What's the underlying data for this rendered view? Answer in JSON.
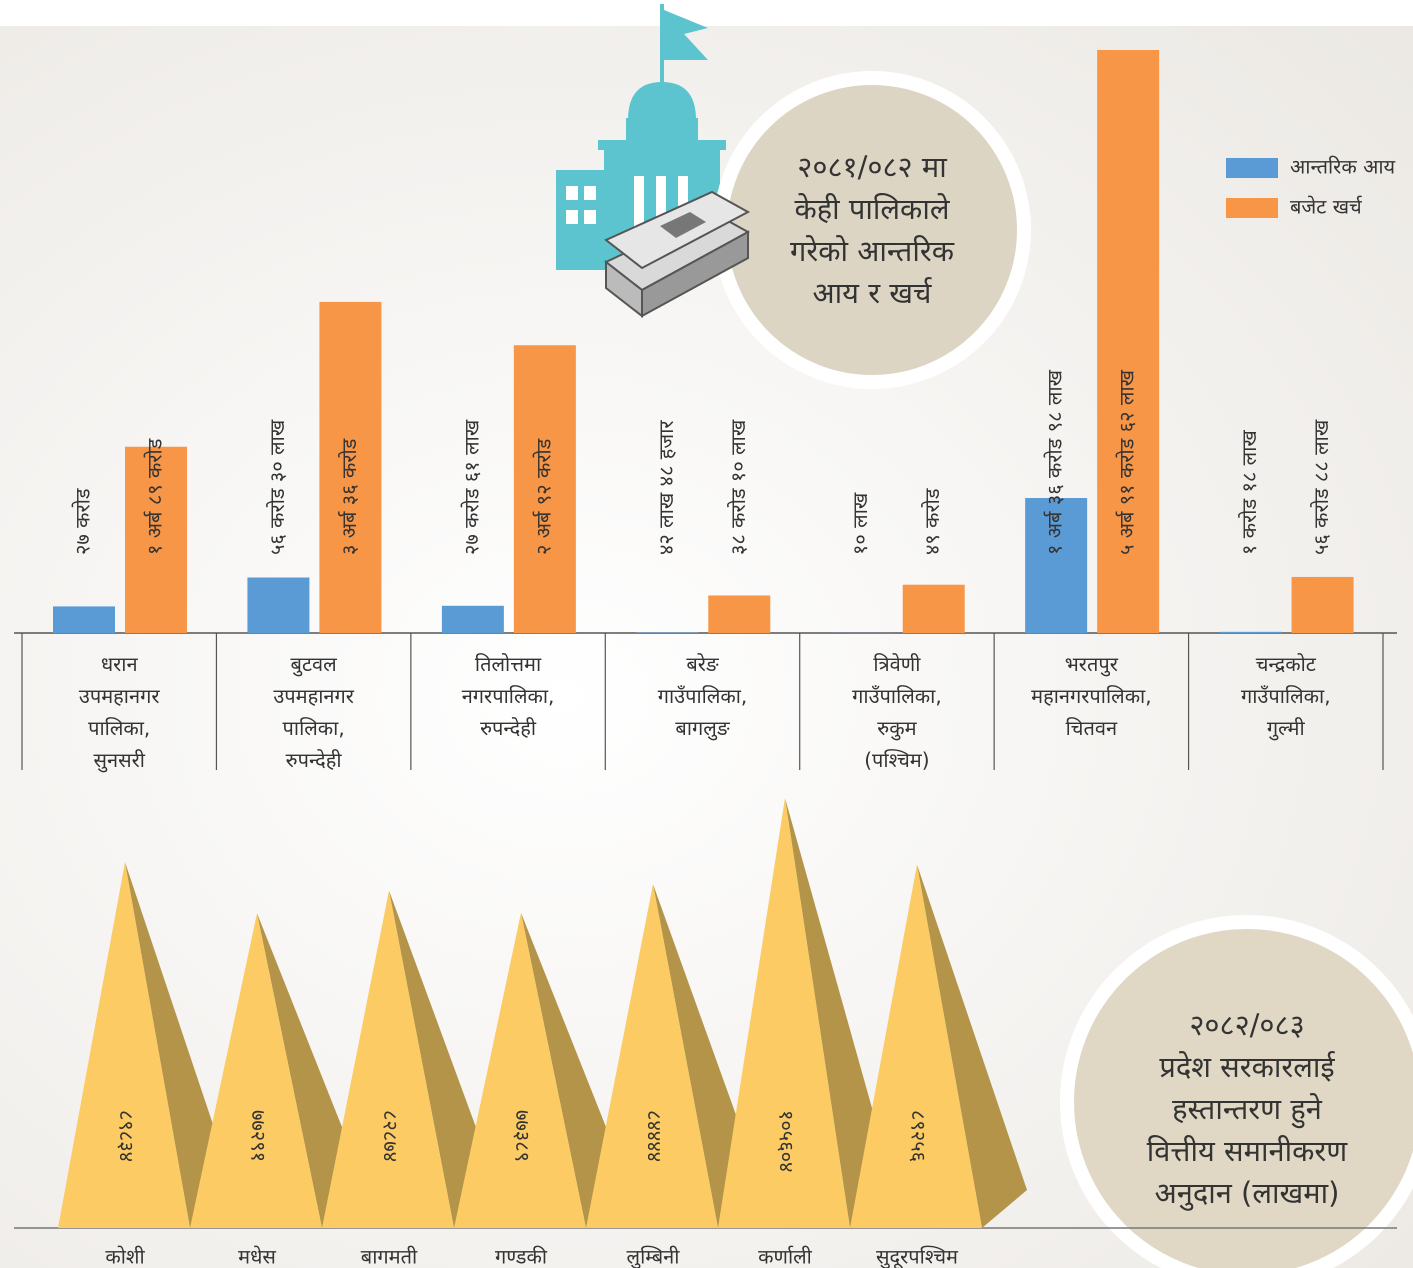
{
  "chart_data": [
    {
      "type": "bar",
      "title": "२०८१/०८२ मा\nकेही पालिकाले\nगरेको आन्तरिक\nआय  र खर्च",
      "categories": [
        "धरान\nउपमहानगर\nपालिका,\nसुनसरी",
        "बुटवल\nउपमहानगर\nपालिका,\nरुपन्देही",
        "तिलोत्तमा\nनगरपालिका,\nरुपन्देही",
        "बरेङ\nगाउँपालिका,\nबागलुङ",
        "त्रिवेणी\nगाउँपालिका,\nरुकुम\n(पश्चिम)",
        "भरतपुर\nमहानगरपालिका,\nचितवन",
        "चन्द्रकोट\nगाउँपालिका,\nगुल्मी"
      ],
      "series": [
        {
          "name": "आन्तरिक आय",
          "color": "#5b9bd5",
          "values": [
            27,
            56.3,
            27.61,
            0.4248,
            0.1,
            136.98,
            1.18
          ],
          "value_labels": [
            "२७ करोड",
            "५६ करोड ३० लाख",
            "२७ करोड ६१ लाख",
            "४२ लाख ४८ हजार",
            "१० लाख",
            "१ अर्ब ३६ करोड ९८ लाख",
            "१ करोड १८ लाख"
          ]
        },
        {
          "name": "बजेट खर्च",
          "color": "#f79646",
          "values": [
            189,
            336,
            292,
            38.1,
            49,
            591.62,
            56.88
          ],
          "value_labels": [
            "१ अर्ब ८९ करोड",
            "३ अर्ब ३६ करोड",
            "२ अर्ब ९२ करोड",
            "३८ करोड १० लाख",
            "४९ करोड",
            "५ अर्ब ९१ करोड ६२ लाख",
            "५६ करोड ८८ लाख"
          ]
        }
      ]
    },
    {
      "type": "pyramid",
      "title": "२०८२/०८३\nप्रदेश सरकारलाई\nहस्तान्तरण हुने\nवित्तीय समानीकरण\nअनुदान (लाखमा)",
      "categories": [
        "कोशी",
        "मधेस",
        "बागमती",
        "गण्डकी",
        "लुम्बिनी",
        "कर्णाली",
        "सुदूरपश्चिम"
      ],
      "values": [
        89834,
        77291,
        82874,
        77389,
        84444,
        105604,
        89256
      ],
      "value_labels": [
        "८९८३४",
        "७७२९१",
        "८२८७४",
        "७७३८९",
        "८४४४४",
        "१०५६०४",
        "८९२५६"
      ],
      "color": "#fccb63",
      "shade_color": "#b39449"
    }
  ]
}
